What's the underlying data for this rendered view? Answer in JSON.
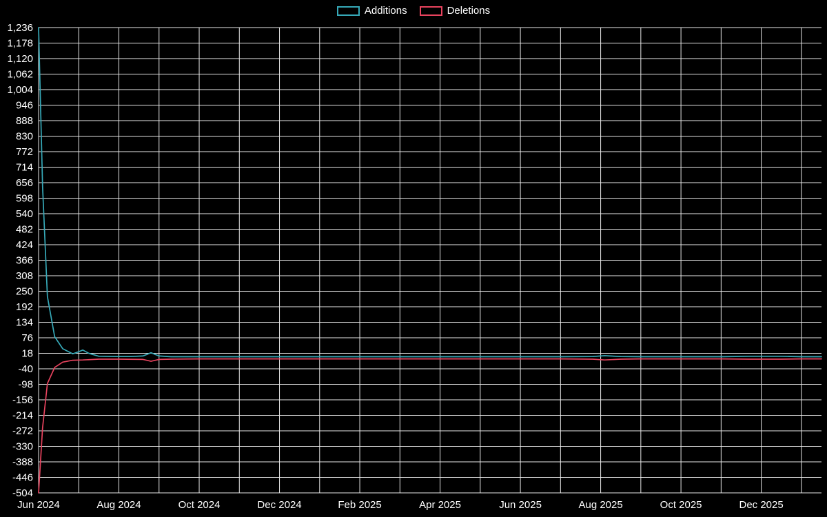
{
  "colors": {
    "background": "#000000",
    "grid": "#e8e8e8",
    "text": "#ffffff",
    "additions": "#36a9b8",
    "deletions": "#e8435e"
  },
  "legend": {
    "items": [
      {
        "label": "Additions",
        "color": "#36a9b8",
        "series": "additions"
      },
      {
        "label": "Deletions",
        "color": "#e8435e",
        "series": "deletions"
      }
    ]
  },
  "chart_data": {
    "type": "line",
    "title": "",
    "xlabel": "",
    "ylabel": "",
    "x_unit": "months since Jun 2024",
    "xlim_months": [
      0,
      19.5
    ],
    "ylim": [
      -504,
      1236
    ],
    "y_tick_step": 58,
    "grid": true,
    "legend_position": "top-center",
    "y_tick_values": [
      1236,
      1178,
      1120,
      1062,
      1004,
      946,
      888,
      830,
      772,
      714,
      656,
      598,
      540,
      482,
      424,
      366,
      308,
      250,
      192,
      134,
      76,
      18,
      -40,
      -98,
      -156,
      -214,
      -272,
      -330,
      -388,
      -446,
      -504
    ],
    "x_gridline_months": [
      0,
      1,
      2,
      3,
      4,
      5,
      6,
      7,
      8,
      9,
      10,
      11,
      12,
      13,
      14,
      15,
      16,
      17,
      18,
      19
    ],
    "x_tick_positions_months": [
      0,
      2,
      4,
      6,
      8,
      10,
      12,
      14,
      16,
      18
    ],
    "x_tick_labels": [
      "Jun 2024",
      "Aug 2024",
      "Oct 2024",
      "Dec 2024",
      "Feb 2025",
      "Apr 2025",
      "Jun 2025",
      "Aug 2025",
      "Oct 2025",
      "Dec 2025"
    ],
    "series": [
      {
        "name": "Additions",
        "color": "#36a9b8",
        "points": [
          [
            0,
            1236
          ],
          [
            0.1,
            640
          ],
          [
            0.22,
            230
          ],
          [
            0.4,
            80
          ],
          [
            0.6,
            35
          ],
          [
            0.85,
            16
          ],
          [
            1.0,
            24
          ],
          [
            1.1,
            30
          ],
          [
            1.25,
            18
          ],
          [
            1.5,
            7
          ],
          [
            1.9,
            6
          ],
          [
            2.3,
            6
          ],
          [
            2.6,
            8
          ],
          [
            2.8,
            20
          ],
          [
            3.0,
            8
          ],
          [
            3.3,
            5
          ],
          [
            4,
            5
          ],
          [
            5,
            5
          ],
          [
            6,
            5
          ],
          [
            7,
            5
          ],
          [
            8,
            5
          ],
          [
            9,
            5
          ],
          [
            10,
            5
          ],
          [
            11,
            5
          ],
          [
            12,
            5
          ],
          [
            13,
            5
          ],
          [
            13.8,
            6
          ],
          [
            14.1,
            9
          ],
          [
            14.5,
            6
          ],
          [
            15,
            5
          ],
          [
            16,
            5
          ],
          [
            17,
            5
          ],
          [
            17.7,
            7
          ],
          [
            18.5,
            7
          ],
          [
            19,
            5
          ],
          [
            19.5,
            5
          ]
        ]
      },
      {
        "name": "Deletions",
        "color": "#e8435e",
        "points": [
          [
            0,
            -504
          ],
          [
            0.1,
            -260
          ],
          [
            0.22,
            -95
          ],
          [
            0.4,
            -35
          ],
          [
            0.6,
            -15
          ],
          [
            0.85,
            -8
          ],
          [
            1.1,
            -7
          ],
          [
            1.5,
            -4
          ],
          [
            2.0,
            -4
          ],
          [
            2.6,
            -5
          ],
          [
            2.8,
            -12
          ],
          [
            3.0,
            -5
          ],
          [
            3.3,
            -4
          ],
          [
            4,
            -3
          ],
          [
            5,
            -3
          ],
          [
            6,
            -3
          ],
          [
            7,
            -3
          ],
          [
            8,
            -3
          ],
          [
            9,
            -3
          ],
          [
            10,
            -3
          ],
          [
            11,
            -3
          ],
          [
            12,
            -3
          ],
          [
            13,
            -3
          ],
          [
            13.8,
            -4
          ],
          [
            14.1,
            -7
          ],
          [
            14.5,
            -4
          ],
          [
            15,
            -3
          ],
          [
            16,
            -3
          ],
          [
            17,
            -3
          ],
          [
            17.7,
            -4
          ],
          [
            18.5,
            -4
          ],
          [
            19,
            -3
          ],
          [
            19.5,
            -3
          ]
        ]
      }
    ]
  }
}
